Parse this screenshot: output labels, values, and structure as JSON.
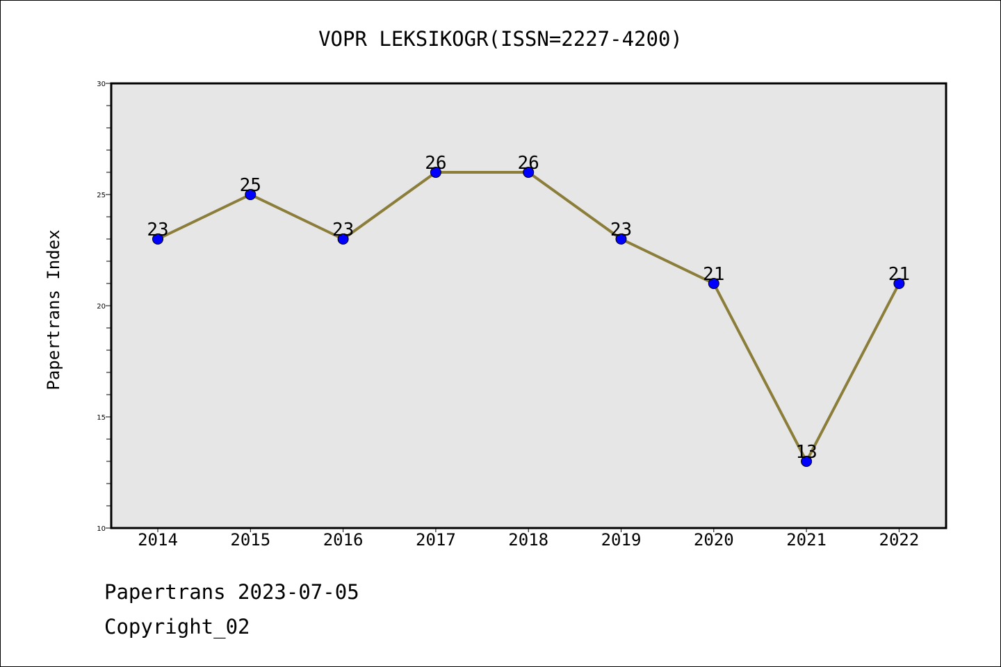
{
  "chart_data": {
    "type": "line",
    "title": "VOPR LEKSIKOGR(ISSN=2227-4200)",
    "xlabel": "",
    "ylabel": "Papertrans Index",
    "categories": [
      "2014",
      "2015",
      "2016",
      "2017",
      "2018",
      "2019",
      "2020",
      "2021",
      "2022"
    ],
    "values": [
      23,
      25,
      23,
      26,
      26,
      23,
      21,
      13,
      21
    ],
    "ylim": [
      10,
      30
    ],
    "yticks": [
      10,
      15,
      20,
      25,
      30
    ],
    "grid": false,
    "legend": "none",
    "colors": {
      "line": "#8b7d3a",
      "marker": "#0000ff",
      "plot_background": "#e6e6e6"
    }
  },
  "footer": {
    "line1": "Papertrans 2023-07-05",
    "line2": "Copyright_02"
  }
}
